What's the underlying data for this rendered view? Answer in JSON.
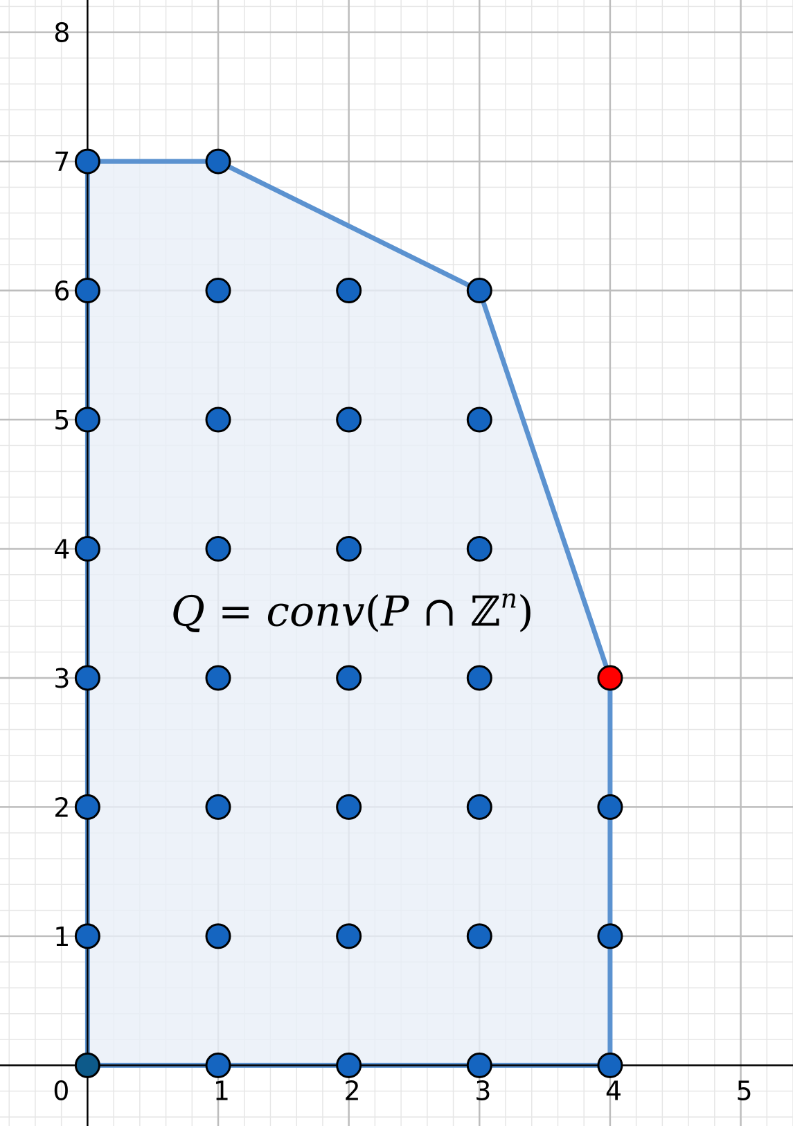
{
  "colors": {
    "background": "#ffffff",
    "minor_grid": "#e6e6e6",
    "major_grid": "#bdbdbd",
    "axis": "#000000",
    "region_fill": "#e8eff8",
    "region_stroke": "#5b92d0",
    "point_fill": "#1565c0",
    "point_stroke": "#000000",
    "origin_point_fill": "#0d5a8a",
    "highlight_point_fill": "#ff0000"
  },
  "chart_data": {
    "type": "scatter",
    "x_range": [
      -0.67,
      5.4
    ],
    "y_range": [
      -0.47,
      8.25
    ],
    "grid": true,
    "minor_per_major": 5,
    "x_ticks": [
      {
        "value": 0,
        "label": "0"
      },
      {
        "value": 1,
        "label": "1"
      },
      {
        "value": 2,
        "label": "2"
      },
      {
        "value": 3,
        "label": "3"
      },
      {
        "value": 4,
        "label": "4"
      },
      {
        "value": 5,
        "label": "5"
      }
    ],
    "y_ticks": [
      {
        "value": 1,
        "label": "1"
      },
      {
        "value": 2,
        "label": "2"
      },
      {
        "value": 3,
        "label": "3"
      },
      {
        "value": 4,
        "label": "4"
      },
      {
        "value": 5,
        "label": "5"
      },
      {
        "value": 6,
        "label": "6"
      },
      {
        "value": 7,
        "label": "7"
      },
      {
        "value": 8,
        "label": "8"
      }
    ],
    "region_vertices": [
      [
        0,
        0
      ],
      [
        0,
        7
      ],
      [
        1,
        7
      ],
      [
        3,
        6
      ],
      [
        4,
        3
      ],
      [
        4,
        0
      ]
    ],
    "points": [
      [
        0,
        0
      ],
      [
        1,
        0
      ],
      [
        2,
        0
      ],
      [
        3,
        0
      ],
      [
        4,
        0
      ],
      [
        0,
        1
      ],
      [
        1,
        1
      ],
      [
        2,
        1
      ],
      [
        3,
        1
      ],
      [
        4,
        1
      ],
      [
        0,
        2
      ],
      [
        1,
        2
      ],
      [
        2,
        2
      ],
      [
        3,
        2
      ],
      [
        4,
        2
      ],
      [
        0,
        3
      ],
      [
        1,
        3
      ],
      [
        2,
        3
      ],
      [
        3,
        3
      ],
      [
        0,
        4
      ],
      [
        1,
        4
      ],
      [
        2,
        4
      ],
      [
        3,
        4
      ],
      [
        0,
        5
      ],
      [
        1,
        5
      ],
      [
        2,
        5
      ],
      [
        3,
        5
      ],
      [
        0,
        6
      ],
      [
        1,
        6
      ],
      [
        2,
        6
      ],
      [
        3,
        6
      ],
      [
        0,
        7
      ],
      [
        1,
        7
      ]
    ],
    "origin_point": [
      0,
      0
    ],
    "highlighted_points": [
      [
        4,
        3
      ]
    ],
    "annotation": {
      "x": 2.0,
      "y": 3.5,
      "parts": [
        "Q",
        " = ",
        "conv",
        "(",
        "P",
        " ∩ ",
        "ℤ",
        "n",
        ")"
      ]
    }
  }
}
